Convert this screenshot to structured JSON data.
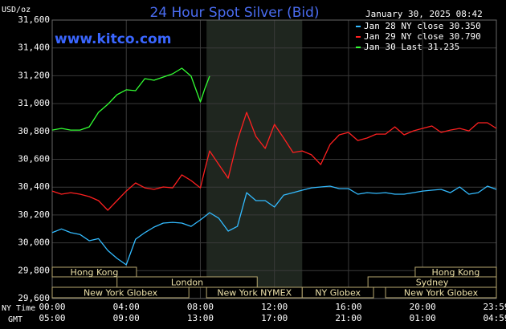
{
  "chart_data": {
    "type": "line",
    "title": "24 Hour Spot Silver (Bid)",
    "unit_label": "USD/oz",
    "timestamp": "January 30, 2025 08:42",
    "watermark": "www.kitco.com",
    "x_axis_labels": [
      "NY Time",
      "GMT"
    ],
    "x": [
      0,
      0.5,
      1,
      1.5,
      2,
      2.5,
      3,
      3.5,
      4,
      4.5,
      5,
      5.5,
      6,
      6.5,
      7,
      7.5,
      8,
      8.25,
      8.5,
      9,
      9.5,
      10,
      10.5,
      11,
      11.5,
      12,
      12.5,
      13,
      13.5,
      14,
      14.5,
      15,
      15.5,
      16,
      16.5,
      17,
      17.5,
      18,
      18.5,
      19,
      19.5,
      20,
      20.5,
      21,
      21.5,
      22,
      22.5,
      23,
      23.5,
      23.983
    ],
    "xlim": [
      0,
      23.983
    ],
    "xticks": [
      {
        "value": 0,
        "label": "00:00"
      },
      {
        "value": 4,
        "label": "04:00"
      },
      {
        "value": 8,
        "label": "08:00"
      },
      {
        "value": 12,
        "label": "12:00"
      },
      {
        "value": 16,
        "label": "16:00"
      },
      {
        "value": 20,
        "label": "20:00"
      },
      {
        "value": 23.983,
        "label": "23:59"
      }
    ],
    "xticks_gmt": [
      {
        "value": 0,
        "label": "05:00"
      },
      {
        "value": 4,
        "label": "09:00"
      },
      {
        "value": 8,
        "label": "13:00"
      },
      {
        "value": 12,
        "label": "17:00"
      },
      {
        "value": 16,
        "label": "21:00"
      },
      {
        "value": 20,
        "label": "01:00"
      },
      {
        "value": 23.983,
        "label": "04:59"
      }
    ],
    "ylim": [
      29600,
      31600
    ],
    "yticks": [
      {
        "value": 29600,
        "label": "29,600"
      },
      {
        "value": 29800,
        "label": "29,800"
      },
      {
        "value": 30000,
        "label": "30,000"
      },
      {
        "value": 30200,
        "label": "30,200"
      },
      {
        "value": 30400,
        "label": "30,400"
      },
      {
        "value": 30600,
        "label": "30,600"
      },
      {
        "value": 30800,
        "label": "30,800"
      },
      {
        "value": 31000,
        "label": "31,000"
      },
      {
        "value": 31200,
        "label": "31,200"
      },
      {
        "value": 31400,
        "label": "31,400"
      },
      {
        "value": 31600,
        "label": "31,600"
      }
    ],
    "grid": true,
    "highlight": {
      "start": 8.333,
      "end": 13.5,
      "color": "#1f261f"
    },
    "sessions": [
      {
        "label": "Hong Kong",
        "start": 0,
        "end": 4.55,
        "row": 0
      },
      {
        "label": "Hong Kong",
        "start": 19.6,
        "end": 23.983,
        "row": 0
      },
      {
        "label": "London",
        "start": 3.5,
        "end": 11.07,
        "row": 1
      },
      {
        "label": "Sydney",
        "start": 17.05,
        "end": 23.983,
        "row": 1
      },
      {
        "label": "New York Globex",
        "start": 0,
        "end": 7.38,
        "row": 2
      },
      {
        "label": "New York NYMEX",
        "start": 8.333,
        "end": 13.5,
        "row": 2
      },
      {
        "label": "NY Globex",
        "start": 13.5,
        "end": 17.35,
        "row": 2
      },
      {
        "label": "New York Globex",
        "start": 18,
        "end": 23.983,
        "row": 2
      }
    ],
    "series": [
      {
        "name": "Jan 28 NY close 30.350",
        "color": "#33bbff",
        "values": [
          30073,
          30100,
          30073,
          30060,
          30015,
          30030,
          29945,
          29888,
          29842,
          30026,
          30073,
          30113,
          30142,
          30147,
          30142,
          30118,
          30165,
          30190,
          30217,
          30176,
          30084,
          30118,
          30360,
          30303,
          30303,
          30257,
          30343,
          30360,
          30378,
          30395,
          30401,
          30407,
          30389,
          30389,
          30349,
          30360,
          30355,
          30360,
          30349,
          30349,
          30360,
          30372,
          30378,
          30384,
          30360,
          30401,
          30349,
          30360,
          30407,
          30384
        ]
      },
      {
        "name": "Jan 29 NY close 30.790",
        "color": "#ff2020",
        "values": [
          30372,
          30349,
          30360,
          30349,
          30332,
          30303,
          30234,
          30303,
          30372,
          30430,
          30395,
          30384,
          30401,
          30395,
          30488,
          30447,
          30395,
          30530,
          30660,
          30562,
          30464,
          30735,
          30937,
          30764,
          30678,
          30851,
          30753,
          30649,
          30660,
          30632,
          30562,
          30706,
          30776,
          30793,
          30735,
          30753,
          30781,
          30781,
          30833,
          30776,
          30804,
          30822,
          30839,
          30793,
          30810,
          30822,
          30804,
          30862,
          30862,
          30822
        ]
      },
      {
        "name": "Jan 30 Last 31.235",
        "color": "#33ff33",
        "values": [
          30810,
          30822,
          30810,
          30810,
          30833,
          30937,
          30995,
          31064,
          31099,
          31093,
          31179,
          31168,
          31191,
          31214,
          31254,
          31197,
          31012,
          31110,
          31197,
          null,
          null,
          null,
          null,
          null,
          null,
          null,
          null,
          null,
          null,
          null,
          null,
          null,
          null,
          null,
          null,
          null,
          null,
          null,
          null,
          null,
          null,
          null,
          null,
          null,
          null,
          null,
          null,
          null,
          null,
          null
        ]
      }
    ]
  }
}
